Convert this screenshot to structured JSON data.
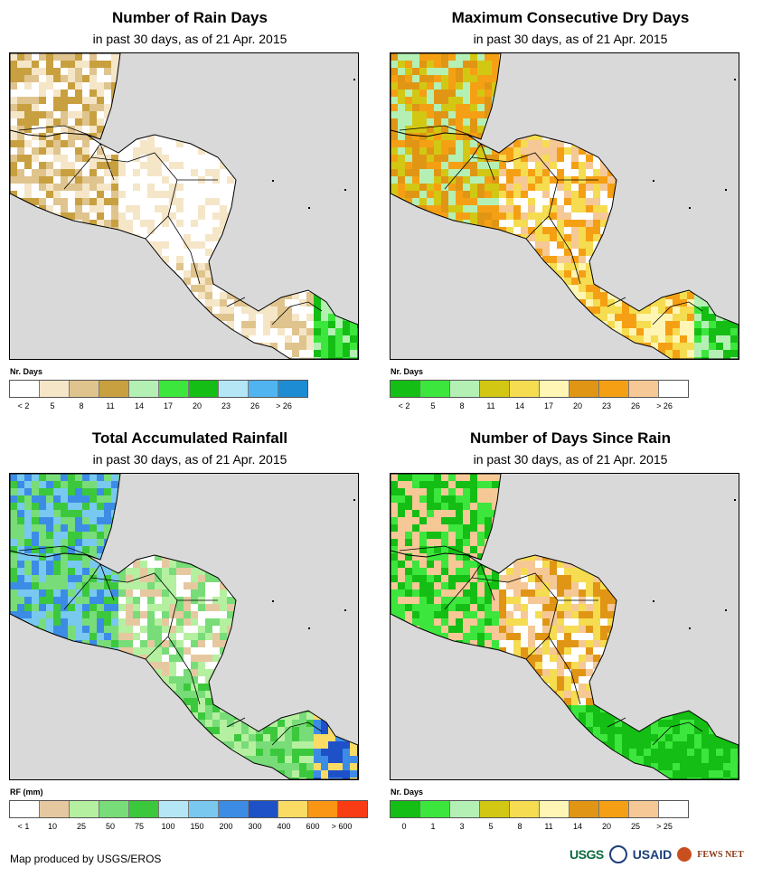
{
  "panels": [
    {
      "id": "rain-days",
      "title": "Number of Rain Days",
      "subtitle": "in past 30 days, as of 21 Apr. 2015",
      "legend_title": "Nr. Days",
      "legend_colors": [
        "#ffffff",
        "#f5e6c8",
        "#e0c48e",
        "#c8a040",
        "#b4f0b4",
        "#3ce63c",
        "#14be14",
        "#b4e6f5",
        "#50b4f0",
        "#1e8cd2"
      ],
      "legend_ticks": [
        "< 2",
        "5",
        "8",
        "11",
        "14",
        "17",
        "20",
        "23",
        "26",
        "> 26"
      ]
    },
    {
      "id": "max-dry-days",
      "title": "Maximum Consecutive Dry Days",
      "subtitle": "in past 30 days, as of 21 Apr. 2015",
      "legend_title": "Nr. Days",
      "legend_colors": [
        "#14be14",
        "#3ce63c",
        "#b4f0b4",
        "#d2c814",
        "#f5dc50",
        "#fff5b4",
        "#e09614",
        "#f5a014",
        "#f5c896",
        "#ffffff"
      ],
      "legend_ticks": [
        "< 2",
        "5",
        "8",
        "11",
        "14",
        "17",
        "20",
        "23",
        "26",
        "> 26"
      ]
    },
    {
      "id": "rainfall",
      "title": "Total Accumulated Rainfall",
      "subtitle": "in past 30 days, as of 21 Apr. 2015",
      "legend_title": "RF (mm)",
      "legend_colors": [
        "#ffffff",
        "#e6c8a0",
        "#b4f0a0",
        "#78dc78",
        "#3cc83c",
        "#b4e6f5",
        "#78c8f0",
        "#3c8ce6",
        "#1e50c8",
        "#fadc64",
        "#fa9614",
        "#fa3c14"
      ],
      "legend_ticks": [
        "< 1",
        "10",
        "25",
        "50",
        "75",
        "100",
        "150",
        "200",
        "300",
        "400",
        "600",
        "> 600"
      ]
    },
    {
      "id": "days-since-rain",
      "title": "Number of Days Since Rain",
      "subtitle": "in past 30 days, as of 21 Apr. 2015",
      "legend_title": "Nr. Days",
      "legend_colors": [
        "#14be14",
        "#3ce63c",
        "#b4f0b4",
        "#d2c814",
        "#f5dc50",
        "#fff5b4",
        "#e09614",
        "#f5a014",
        "#f5c896",
        "#ffffff"
      ],
      "legend_ticks": [
        "0",
        "1",
        "3",
        "5",
        "8",
        "11",
        "14",
        "20",
        "25",
        "> 25"
      ]
    }
  ],
  "credit": "Map produced by USGS/EROS",
  "logos": {
    "usgs": "USGS",
    "usaid": "USAID",
    "fews": "FEWS NET"
  },
  "colors": {
    "ocean": "#d9d9d9",
    "border": "#000000"
  }
}
